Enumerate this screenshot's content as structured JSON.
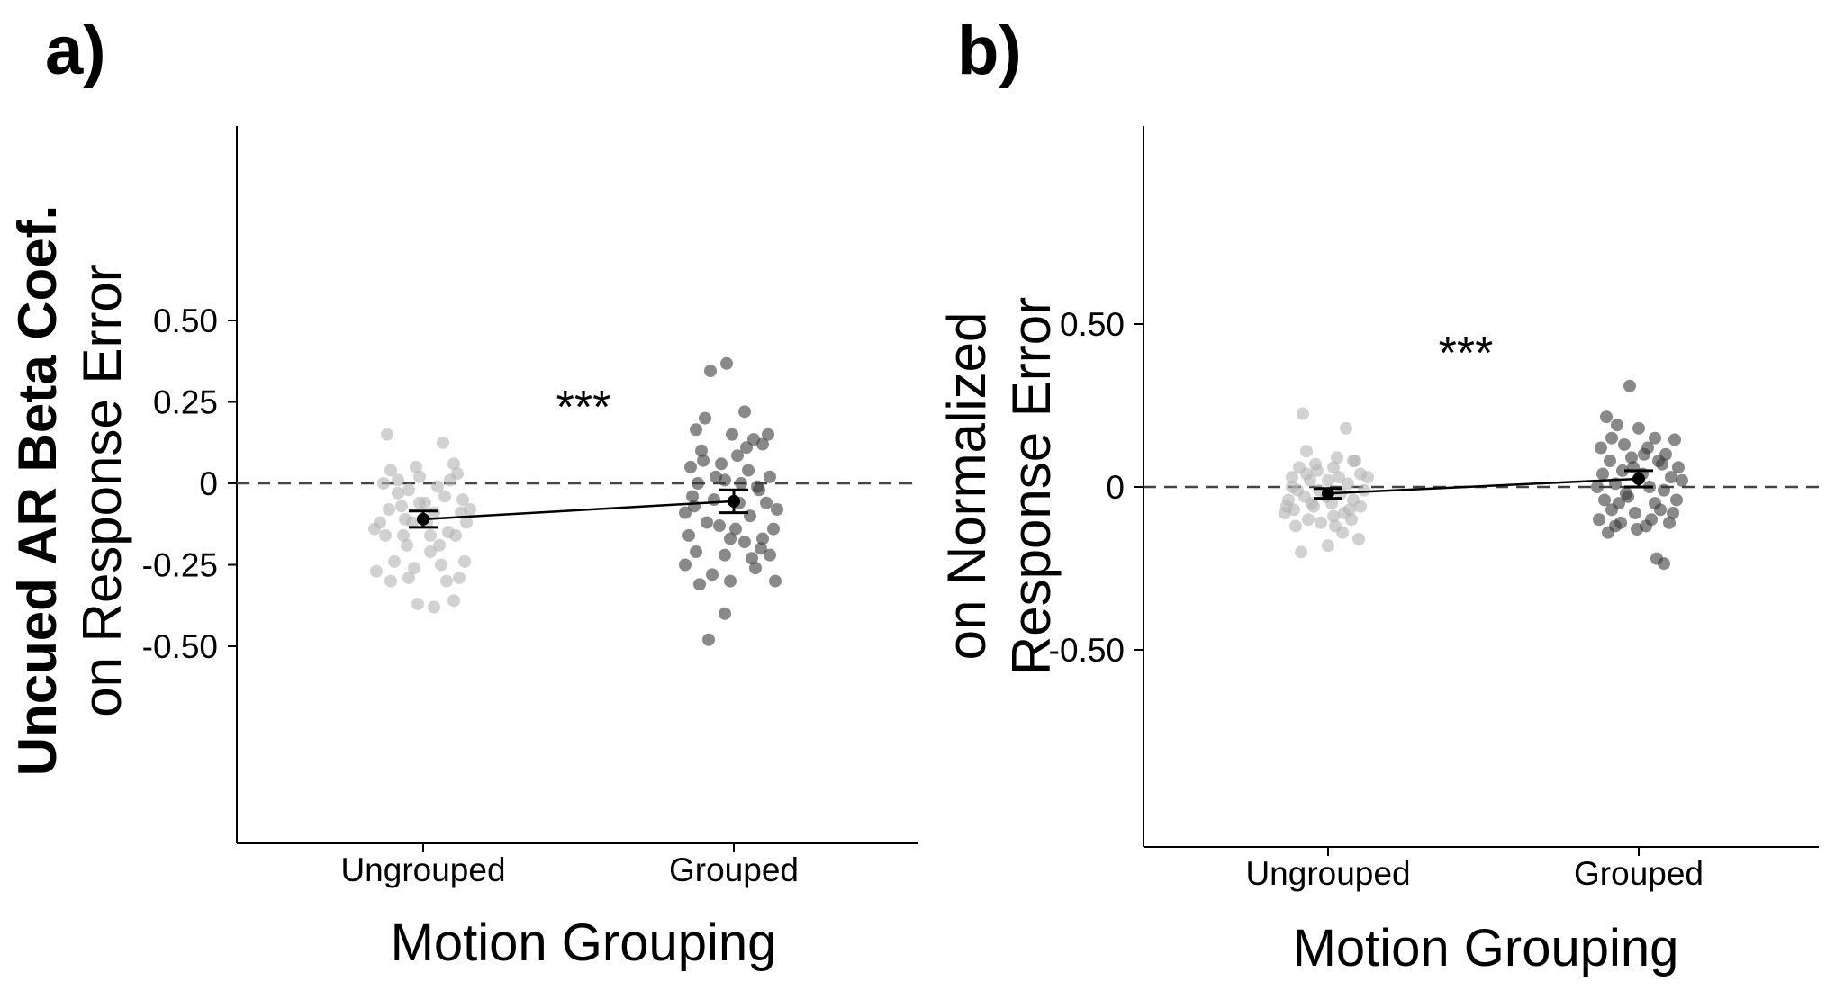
{
  "panels": [
    {
      "letter": "a)",
      "significance": "***",
      "ylabel_line1": "Uncued AR Beta Coef.",
      "ylabel_line2": "on Response Error"
    },
    {
      "letter": "b)",
      "significance": "***",
      "ylabel_line1": "on Normalized",
      "ylabel_line2": "Response Error"
    }
  ],
  "colors": {
    "ungrouped_point": "#b3b3b3",
    "grouped_point": "#3a3a3a",
    "point_alpha": 0.6,
    "mean_line": "#000000",
    "reference_line": "#444444"
  },
  "chart_data": [
    {
      "type": "scatter",
      "title": "",
      "xlabel": "Motion Grouping",
      "ylabel": "Uncued AR Beta Coef. on Response Error",
      "categories": [
        "Ungrouped",
        "Grouped"
      ],
      "ylim": [
        -0.55,
        0.55
      ],
      "yticks": [
        0.5,
        0.25,
        0,
        -0.25,
        -0.5
      ],
      "ytick_labels": [
        "0.50",
        "0.25",
        "0",
        "-0.25",
        "-0.50"
      ],
      "reference_line": 0,
      "grid": false,
      "annotation": "***",
      "means": [
        {
          "category": "Ungrouped",
          "mean": -0.11,
          "ci": [
            -0.135,
            -0.085
          ]
        },
        {
          "category": "Grouped",
          "mean": -0.055,
          "ci": [
            -0.09,
            -0.02
          ]
        }
      ],
      "series": [
        {
          "name": "Ungrouped",
          "points": [
            [
              -0.2,
              0.15
            ],
            [
              0.11,
              0.125
            ],
            [
              -0.18,
              0.04
            ],
            [
              0.17,
              0.06
            ],
            [
              -0.22,
              0.0
            ],
            [
              0.15,
              0.01
            ],
            [
              -0.14,
              0.01
            ],
            [
              -0.08,
              -0.02
            ],
            [
              -0.02,
              0.02
            ],
            [
              0.08,
              -0.01
            ],
            [
              0.22,
              -0.05
            ],
            [
              -0.19,
              -0.08
            ],
            [
              -0.12,
              -0.07
            ],
            [
              -0.02,
              -0.06
            ],
            [
              0.06,
              -0.09
            ],
            [
              0.21,
              -0.09
            ],
            [
              -0.24,
              -0.12
            ],
            [
              -0.1,
              -0.11
            ],
            [
              0.02,
              -0.12
            ],
            [
              0.14,
              -0.15
            ],
            [
              0.24,
              -0.12
            ],
            [
              -0.21,
              -0.16
            ],
            [
              -0.09,
              -0.19
            ],
            [
              0.04,
              -0.21
            ],
            [
              0.18,
              -0.16
            ],
            [
              -0.16,
              -0.24
            ],
            [
              -0.05,
              -0.26
            ],
            [
              0.1,
              -0.25
            ],
            [
              0.23,
              -0.24
            ],
            [
              -0.26,
              -0.27
            ],
            [
              -0.08,
              -0.29
            ],
            [
              0.13,
              -0.3
            ],
            [
              0.2,
              -0.29
            ],
            [
              -0.03,
              -0.37
            ],
            [
              0.06,
              -0.38
            ],
            [
              0.17,
              -0.36
            ],
            [
              -0.18,
              -0.3
            ],
            [
              0.01,
              -0.06
            ],
            [
              0.12,
              -0.04
            ],
            [
              -0.14,
              -0.03
            ],
            [
              -0.27,
              -0.14
            ],
            [
              0.26,
              -0.08
            ],
            [
              -0.04,
              0.05
            ],
            [
              0.04,
              -0.16
            ],
            [
              -0.11,
              -0.16
            ],
            [
              0.09,
              -0.19
            ],
            [
              -0.06,
              -0.12
            ],
            [
              0.19,
              0.03
            ]
          ]
        },
        {
          "name": "Grouped",
          "points": [
            [
              -0.13,
              0.345
            ],
            [
              -0.04,
              0.368
            ],
            [
              -0.16,
              0.2
            ],
            [
              0.06,
              0.22
            ],
            [
              -0.21,
              0.165
            ],
            [
              -0.01,
              0.15
            ],
            [
              0.11,
              0.135
            ],
            [
              -0.18,
              0.1
            ],
            [
              0.02,
              0.085
            ],
            [
              0.16,
              0.12
            ],
            [
              -0.24,
              0.05
            ],
            [
              -0.07,
              0.06
            ],
            [
              0.08,
              0.04
            ],
            [
              0.2,
              0.02
            ],
            [
              -0.2,
              0.0
            ],
            [
              -0.05,
              0.01
            ],
            [
              0.13,
              -0.01
            ],
            [
              -0.23,
              -0.04
            ],
            [
              -0.11,
              -0.05
            ],
            [
              0.03,
              -0.06
            ],
            [
              0.18,
              -0.06
            ],
            [
              -0.27,
              -0.09
            ],
            [
              -0.15,
              -0.12
            ],
            [
              0.01,
              -0.14
            ],
            [
              0.09,
              -0.1
            ],
            [
              0.22,
              -0.14
            ],
            [
              -0.25,
              -0.16
            ],
            [
              -0.08,
              -0.13
            ],
            [
              0.06,
              -0.18
            ],
            [
              0.15,
              -0.2
            ],
            [
              -0.21,
              -0.21
            ],
            [
              -0.05,
              -0.22
            ],
            [
              0.1,
              -0.23
            ],
            [
              0.2,
              -0.22
            ],
            [
              -0.27,
              -0.25
            ],
            [
              -0.12,
              -0.28
            ],
            [
              0.12,
              -0.26
            ],
            [
              0.23,
              -0.3
            ],
            [
              -0.19,
              -0.31
            ],
            [
              -0.02,
              -0.3
            ],
            [
              -0.05,
              -0.4
            ],
            [
              -0.14,
              -0.48
            ],
            [
              0.16,
              -0.17
            ],
            [
              -0.1,
              0.02
            ],
            [
              0.04,
              0.0
            ],
            [
              -0.17,
              0.07
            ],
            [
              0.19,
              0.15
            ],
            [
              0.14,
              -0.02
            ],
            [
              -0.22,
              -0.07
            ],
            [
              0.24,
              -0.08
            ],
            [
              -0.02,
              -0.17
            ],
            [
              0.07,
              0.11
            ]
          ]
        }
      ]
    },
    {
      "type": "scatter",
      "title": "",
      "xlabel": "Motion Grouping",
      "ylabel": "on Normalized Response Error",
      "categories": [
        "Ungrouped",
        "Grouped"
      ],
      "ylim": [
        -0.55,
        0.55
      ],
      "yticks": [
        0.5,
        0,
        -0.5
      ],
      "ytick_labels": [
        "0.50",
        "0",
        "-0.50"
      ],
      "reference_line": 0,
      "grid": false,
      "annotation": "***",
      "means": [
        {
          "category": "Ungrouped",
          "mean": -0.02,
          "ci": [
            -0.035,
            -0.005
          ]
        },
        {
          "category": "Grouped",
          "mean": 0.025,
          "ci": [
            0.0,
            0.05
          ]
        }
      ],
      "series": [
        {
          "name": "Ungrouped",
          "points": [
            [
              -0.14,
              0.225
            ],
            [
              0.1,
              0.18
            ],
            [
              -0.12,
              0.11
            ],
            [
              0.05,
              0.09
            ],
            [
              0.14,
              0.08
            ],
            [
              -0.16,
              0.06
            ],
            [
              -0.06,
              0.05
            ],
            [
              0.03,
              0.06
            ],
            [
              0.18,
              0.04
            ],
            [
              -0.2,
              0.03
            ],
            [
              -0.1,
              0.02
            ],
            [
              0.0,
              0.02
            ],
            [
              0.11,
              0.01
            ],
            [
              -0.17,
              -0.01
            ],
            [
              -0.05,
              -0.01
            ],
            [
              0.07,
              -0.02
            ],
            [
              0.2,
              -0.01
            ],
            [
              -0.22,
              -0.04
            ],
            [
              -0.13,
              -0.03
            ],
            [
              0.02,
              -0.05
            ],
            [
              0.14,
              -0.04
            ],
            [
              -0.19,
              -0.07
            ],
            [
              -0.08,
              -0.06
            ],
            [
              0.09,
              -0.08
            ],
            [
              0.18,
              -0.06
            ],
            [
              -0.24,
              -0.08
            ],
            [
              -0.11,
              -0.1
            ],
            [
              0.04,
              -0.12
            ],
            [
              0.13,
              -0.1
            ],
            [
              -0.18,
              -0.12
            ],
            [
              -0.04,
              -0.11
            ],
            [
              0.08,
              -0.14
            ],
            [
              -0.15,
              -0.2
            ],
            [
              0.0,
              -0.18
            ],
            [
              0.17,
              -0.16
            ],
            [
              -0.23,
              -0.06
            ],
            [
              0.22,
              0.03
            ],
            [
              -0.07,
              0.07
            ],
            [
              0.12,
              -0.07
            ],
            [
              -0.01,
              -0.03
            ],
            [
              0.06,
              0.03
            ],
            [
              -0.2,
              0.0
            ],
            [
              -0.09,
              -0.05
            ],
            [
              0.15,
              0.08
            ],
            [
              0.03,
              -0.09
            ],
            [
              -0.12,
              0.04
            ]
          ]
        },
        {
          "name": "Grouped",
          "points": [
            [
              -0.05,
              0.31
            ],
            [
              -0.18,
              0.215
            ],
            [
              -0.12,
              0.19
            ],
            [
              0.0,
              0.18
            ],
            [
              0.09,
              0.15
            ],
            [
              0.2,
              0.145
            ],
            [
              -0.21,
              0.12
            ],
            [
              -0.08,
              0.13
            ],
            [
              0.05,
              0.12
            ],
            [
              0.15,
              0.1
            ],
            [
              -0.16,
              0.08
            ],
            [
              -0.04,
              0.09
            ],
            [
              0.11,
              0.08
            ],
            [
              0.22,
              0.06
            ],
            [
              -0.2,
              0.04
            ],
            [
              -0.09,
              0.05
            ],
            [
              0.02,
              0.04
            ],
            [
              0.18,
              0.03
            ],
            [
              -0.23,
              0.0
            ],
            [
              -0.13,
              0.01
            ],
            [
              0.06,
              0.0
            ],
            [
              0.14,
              -0.01
            ],
            [
              -0.19,
              -0.04
            ],
            [
              -0.06,
              -0.03
            ],
            [
              0.09,
              -0.05
            ],
            [
              0.21,
              -0.04
            ],
            [
              -0.15,
              -0.07
            ],
            [
              -0.02,
              -0.08
            ],
            [
              0.12,
              -0.07
            ],
            [
              -0.22,
              -0.1
            ],
            [
              -0.1,
              -0.11
            ],
            [
              0.04,
              -0.12
            ],
            [
              0.17,
              -0.11
            ],
            [
              -0.17,
              -0.14
            ],
            [
              -0.01,
              -0.13
            ],
            [
              0.07,
              -0.1
            ],
            [
              0.1,
              -0.22
            ],
            [
              0.14,
              -0.235
            ],
            [
              -0.13,
              -0.12
            ],
            [
              0.19,
              -0.08
            ],
            [
              -0.03,
              0.06
            ],
            [
              0.13,
              0.07
            ],
            [
              -0.07,
              -0.02
            ],
            [
              0.03,
              0.1
            ],
            [
              -0.15,
              0.15
            ],
            [
              0.24,
              0.02
            ],
            [
              -0.11,
              -0.05
            ]
          ]
        }
      ]
    }
  ]
}
